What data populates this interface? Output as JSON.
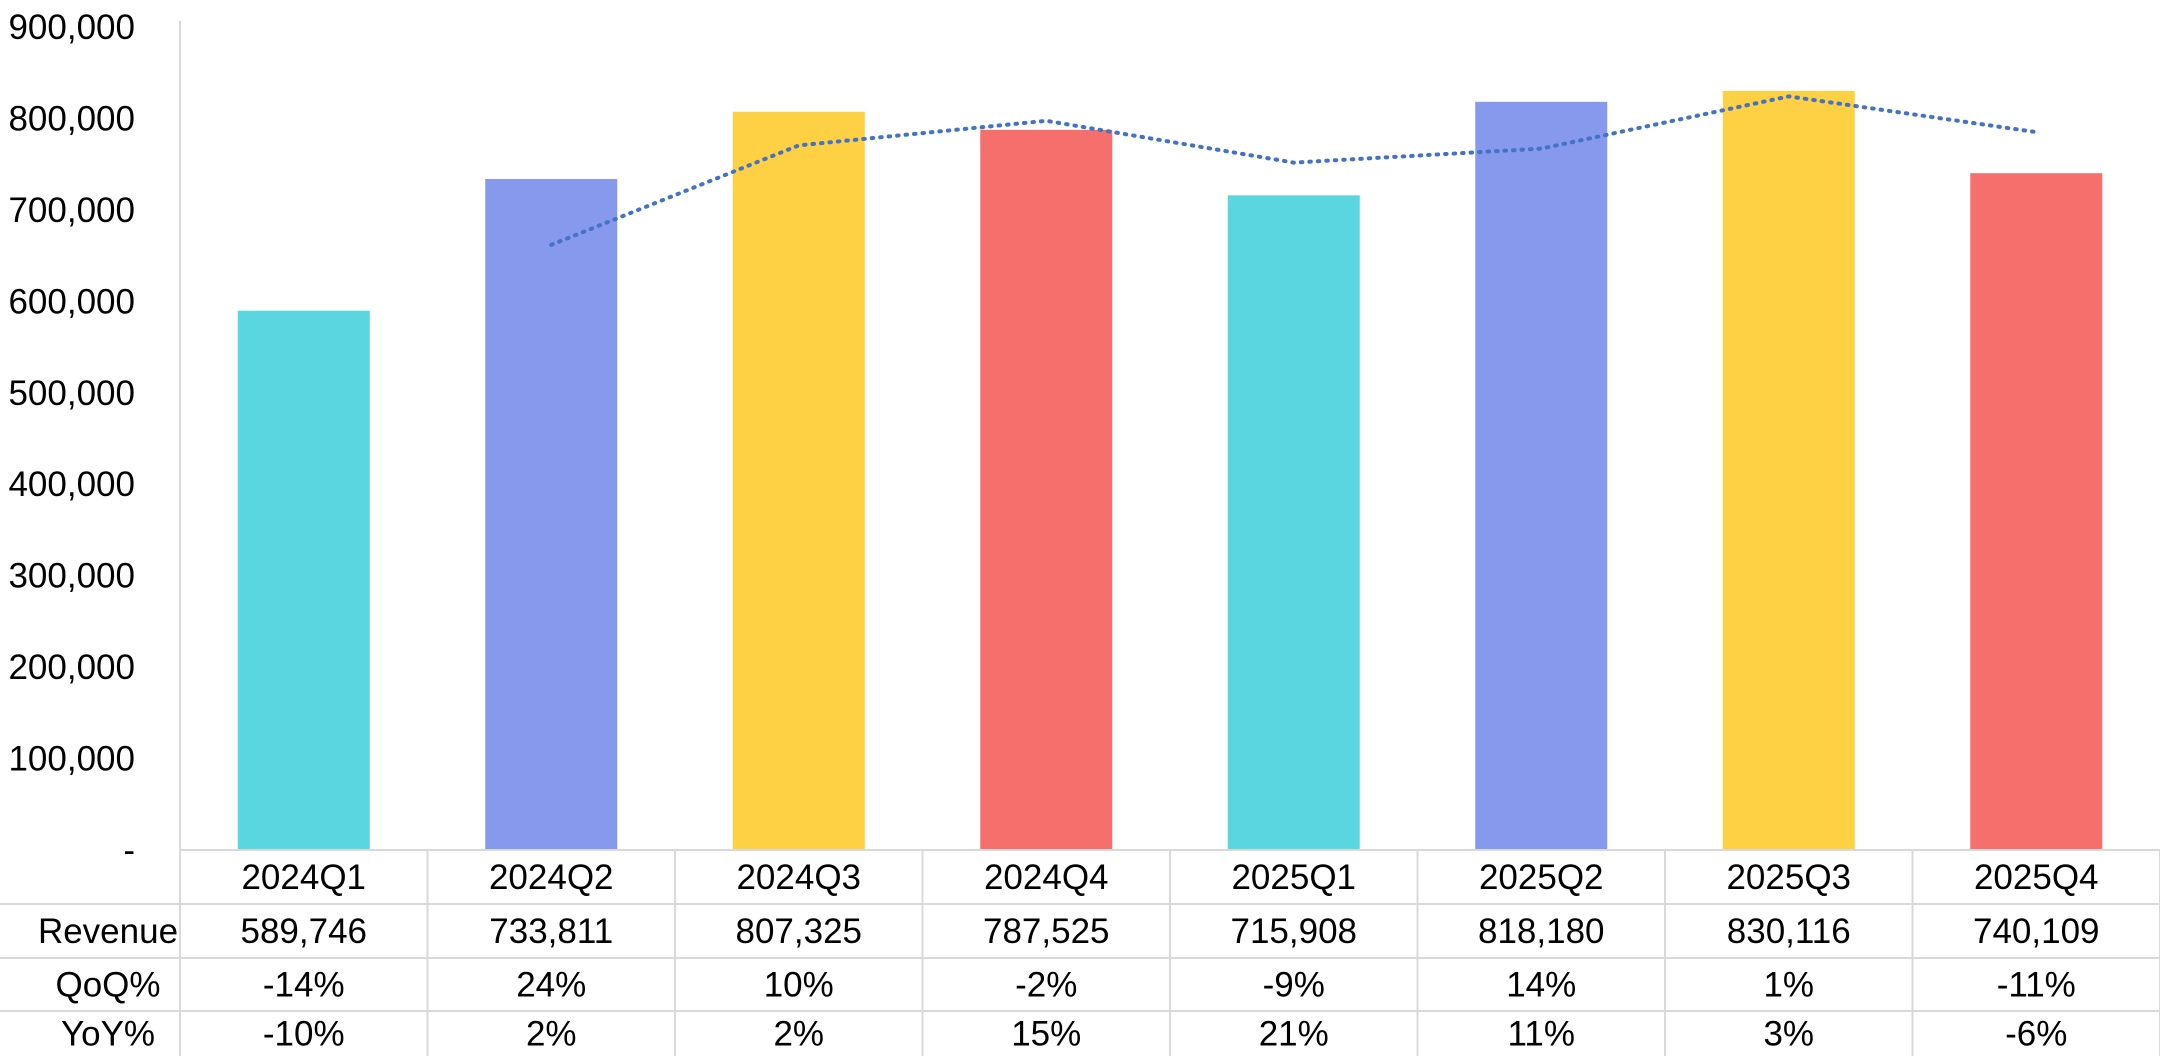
{
  "chart_data": {
    "type": "bar",
    "categories": [
      "2024Q1",
      "2024Q2",
      "2024Q3",
      "2024Q4",
      "2025Q1",
      "2025Q2",
      "2025Q3",
      "2025Q4"
    ],
    "series": [
      {
        "name": "Revenue",
        "type": "bar",
        "values": [
          589746,
          733811,
          807325,
          787525,
          715908,
          818180,
          830116,
          740109
        ],
        "colors": [
          "#59d6e0",
          "#8699ed",
          "#fdd143",
          "#f5706d",
          "#59d6e0",
          "#8699ed",
          "#fdd143",
          "#f5706d"
        ]
      },
      {
        "type": "line",
        "style": "dotted",
        "color": "#4472c4",
        "values": [
          null,
          661778,
          770568,
          797425,
          751716,
          767044,
          824148,
          785112
        ]
      }
    ],
    "ylim": [
      0,
      900000
    ],
    "yticks": [
      0,
      100000,
      200000,
      300000,
      400000,
      500000,
      600000,
      700000,
      800000,
      900000
    ],
    "ytick_labels": [
      "-",
      "100,000",
      "200,000",
      "300,000",
      "400,000",
      "500,000",
      "600,000",
      "700,000",
      "800,000",
      "900,000"
    ],
    "grid": false,
    "data_table": {
      "rows": [
        {
          "header": "Revenue",
          "values": [
            "589,746",
            "733,811",
            "807,325",
            "787,525",
            "715,908",
            "818,180",
            "830,116",
            "740,109"
          ]
        },
        {
          "header": "QoQ%",
          "values": [
            "-14%",
            "24%",
            "10%",
            "-2%",
            "-9%",
            "14%",
            "1%",
            "-11%"
          ]
        },
        {
          "header": "YoY%",
          "values": [
            "-10%",
            "2%",
            "2%",
            "15%",
            "21%",
            "11%",
            "3%",
            "-6%"
          ]
        }
      ]
    }
  }
}
